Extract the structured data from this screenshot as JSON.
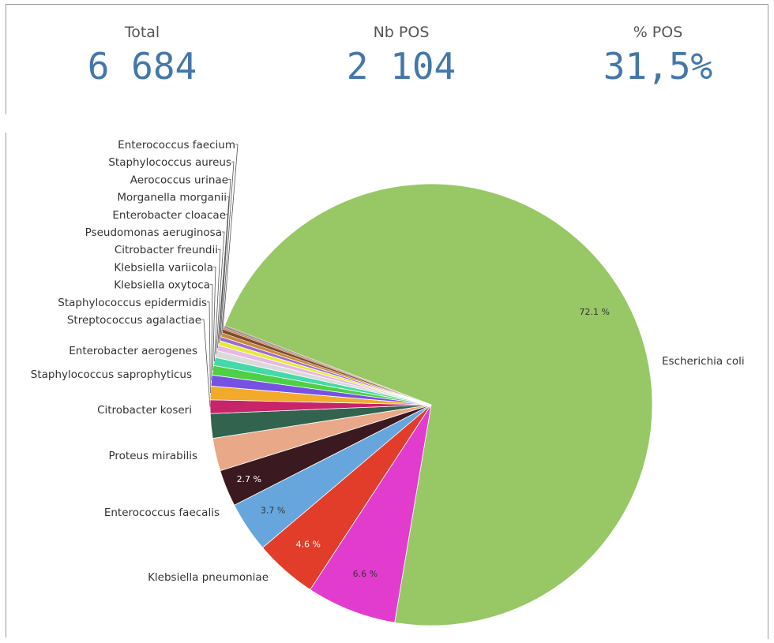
{
  "kpis": [
    {
      "label": "Total",
      "value": "6 684"
    },
    {
      "label": "Nb POS",
      "value": "2 104"
    },
    {
      "label": "% POS",
      "value": "31,5%"
    }
  ],
  "chart_data": {
    "type": "pie",
    "start_angle_deg": -159,
    "direction": "clockwise",
    "slices": [
      {
        "label": "Escherichia coli",
        "value": 72.1,
        "color": "#98c765",
        "data_label": "72.1 %",
        "label_color": "#333333"
      },
      {
        "label": "Klebsiella pneumoniae",
        "value": 6.6,
        "color": "#e23ccf",
        "data_label": "6.6 %",
        "label_color": "#333333"
      },
      {
        "label": "Enterococcus faecalis",
        "value": 4.6,
        "color": "#e23d2a",
        "data_label": "4.6 %",
        "label_color": "#ffffff"
      },
      {
        "label": "Proteus mirabilis",
        "value": 3.7,
        "color": "#66a6dc",
        "data_label": "3.7 %",
        "label_color": "#333333"
      },
      {
        "label": "Citrobacter koseri",
        "value": 2.7,
        "color": "#3a1a20",
        "data_label": "2.7 %",
        "label_color": "#ffffff"
      },
      {
        "label": "Staphylococcus saprophyticus",
        "value": 2.4,
        "color": "#e9a888",
        "data_label": ""
      },
      {
        "label": "Enterobacter aerogenes",
        "value": 1.8,
        "color": "#32634e",
        "data_label": ""
      },
      {
        "label": "Streptococcus agalactiae",
        "value": 1.0,
        "color": "#c7246a",
        "data_label": ""
      },
      {
        "label": "Staphylococcus epidermidis",
        "value": 1.0,
        "color": "#f1aa2a",
        "data_label": ""
      },
      {
        "label": "Klebsiella oxytoca",
        "value": 0.8,
        "color": "#7652e2",
        "data_label": ""
      },
      {
        "label": "Klebsiella variicola",
        "value": 0.7,
        "color": "#4ecf45",
        "data_label": ""
      },
      {
        "label": "Citrobacter freundii",
        "value": 0.6,
        "color": "#44d9a8",
        "data_label": ""
      },
      {
        "label": "Pseudomonas aeruginosa",
        "value": 0.5,
        "color": "#dadada",
        "data_label": ""
      },
      {
        "label": "Enterobacter cloacae",
        "value": 0.4,
        "color": "#e6b8e6",
        "data_label": ""
      },
      {
        "label": "Morganella morganii",
        "value": 0.35,
        "color": "#e4ec3a",
        "data_label": ""
      },
      {
        "label": "Aerococcus urinae",
        "value": 0.3,
        "color": "#9c6bd1",
        "data_label": ""
      },
      {
        "label": "Staphylococcus aureus",
        "value": 0.3,
        "color": "#c98a3a",
        "data_label": ""
      },
      {
        "label": "Enterococcus faecium",
        "value": 0.25,
        "color": "#7a4a2a",
        "data_label": ""
      },
      {
        "label": "",
        "value": 0.15,
        "color": "#d98a6a",
        "data_label": ""
      },
      {
        "label": "",
        "value": 0.1,
        "color": "#5a8f8a",
        "data_label": ""
      },
      {
        "label": "",
        "value": 0.05,
        "color": "#b05050",
        "data_label": ""
      }
    ]
  }
}
